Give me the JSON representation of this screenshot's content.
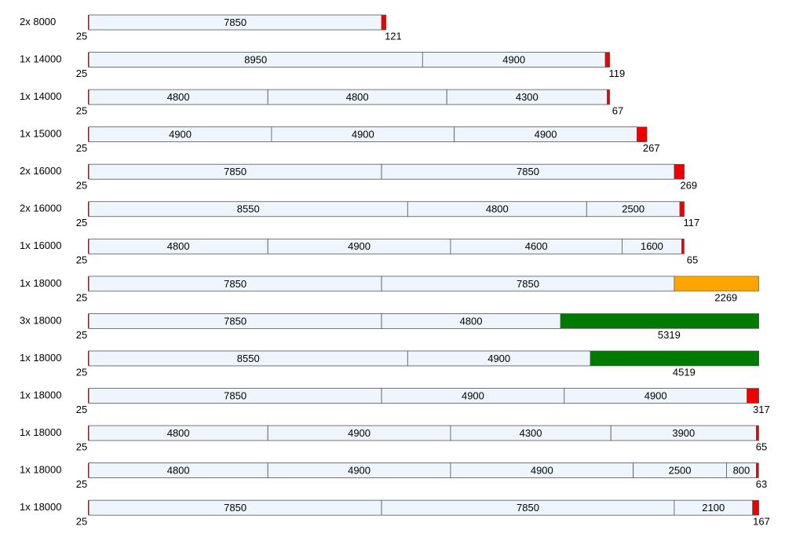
{
  "rows": [
    {
      "label": "2x 8000",
      "start": 25,
      "pieces": [
        7850
      ],
      "waste": 121,
      "waste_color": "#ee0000"
    },
    {
      "label": "1x 14000",
      "start": 25,
      "pieces": [
        8950,
        4900
      ],
      "waste": 119,
      "waste_color": "#ee0000"
    },
    {
      "label": "1x 14000",
      "start": 25,
      "pieces": [
        4800,
        4800,
        4300
      ],
      "waste": 67,
      "waste_color": "#ee0000"
    },
    {
      "label": "1x 15000",
      "start": 25,
      "pieces": [
        4900,
        4900,
        4900
      ],
      "waste": 267,
      "waste_color": "#ee0000"
    },
    {
      "label": "2x 16000",
      "start": 25,
      "pieces": [
        7850,
        7850
      ],
      "waste": 269,
      "waste_color": "#ee0000"
    },
    {
      "label": "2x 16000",
      "start": 25,
      "pieces": [
        8550,
        4800,
        2500
      ],
      "waste": 117,
      "waste_color": "#ee0000"
    },
    {
      "label": "1x 16000",
      "start": 25,
      "pieces": [
        4800,
        4900,
        4600,
        1600
      ],
      "waste": 65,
      "waste_color": "#ee0000"
    },
    {
      "label": "1x 18000",
      "start": 25,
      "pieces": [
        7850,
        7850
      ],
      "waste": 2269,
      "waste_color": "#ffa500"
    },
    {
      "label": "3x 18000",
      "start": 25,
      "pieces": [
        7850,
        4800
      ],
      "waste": 5319,
      "waste_color": "#007a00"
    },
    {
      "label": "1x 18000",
      "start": 25,
      "pieces": [
        8550,
        4900
      ],
      "waste": 4519,
      "waste_color": "#007a00"
    },
    {
      "label": "1x 18000",
      "start": 25,
      "pieces": [
        7850,
        4900,
        4900
      ],
      "waste": 317,
      "waste_color": "#ee0000"
    },
    {
      "label": "1x 18000",
      "start": 25,
      "pieces": [
        4800,
        4900,
        4300,
        3900
      ],
      "waste": 65,
      "waste_color": "#ee0000"
    },
    {
      "label": "1x 18000",
      "start": 25,
      "pieces": [
        4800,
        4900,
        4900,
        2500,
        800
      ],
      "waste": 63,
      "waste_color": "#ee0000"
    },
    {
      "label": "1x 18000",
      "start": 25,
      "pieces": [
        7850,
        7850,
        2100
      ],
      "waste": 167,
      "waste_color": "#ee0000"
    }
  ]
}
